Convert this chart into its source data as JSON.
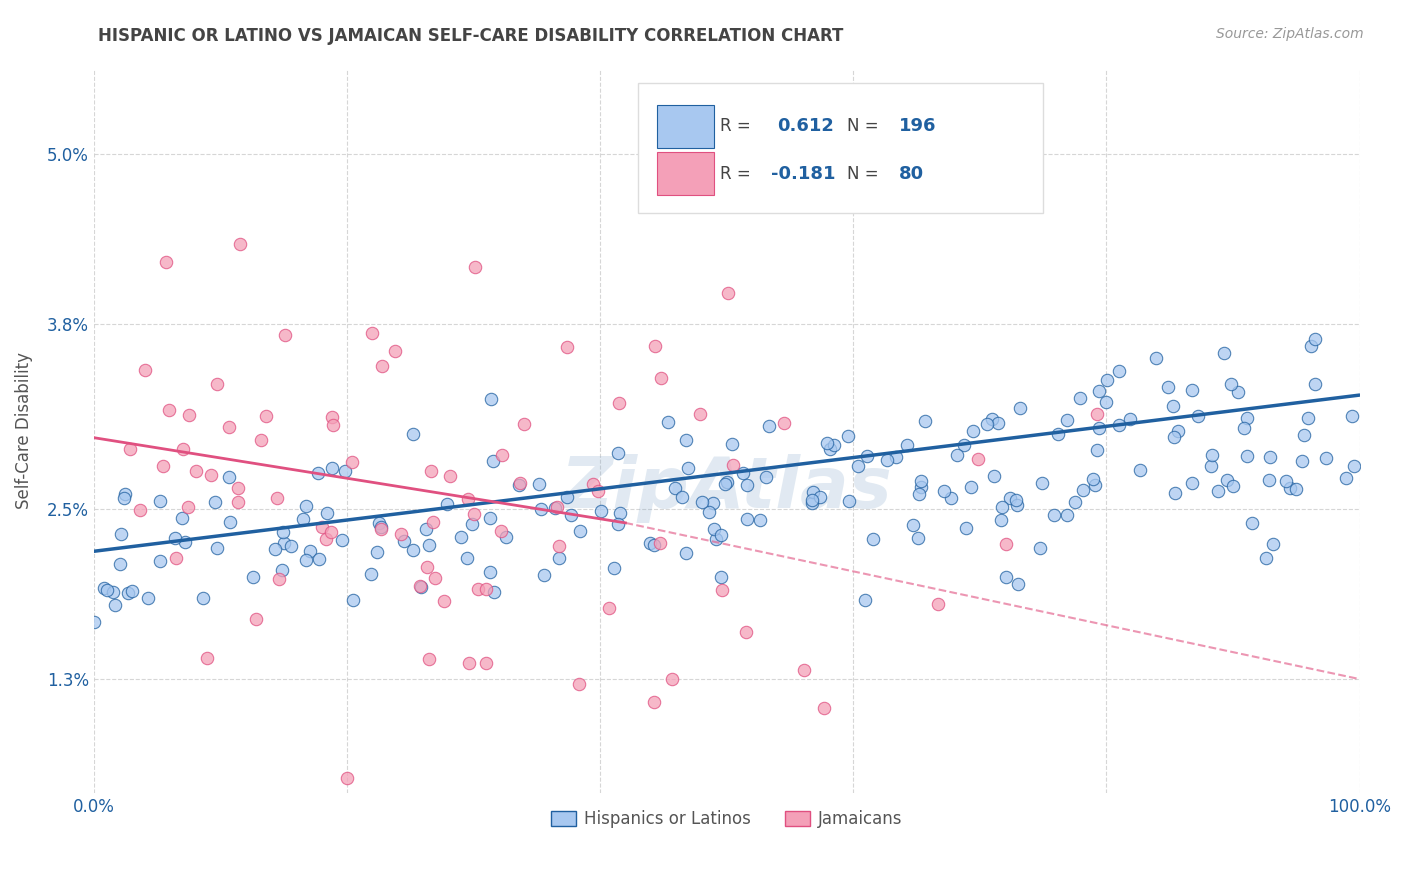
{
  "title": "HISPANIC OR LATINO VS JAMAICAN SELF-CARE DISABILITY CORRELATION CHART",
  "source": "Source: ZipAtlas.com",
  "ylabel": "Self-Care Disability",
  "yticks": [
    "1.3%",
    "2.5%",
    "3.8%",
    "5.0%"
  ],
  "ytick_values": [
    0.013,
    0.025,
    0.038,
    0.05
  ],
  "xlim": [
    0.0,
    1.0
  ],
  "ylim": [
    0.005,
    0.056
  ],
  "r_blue": 0.612,
  "n_blue": 196,
  "r_pink": -0.181,
  "n_pink": 80,
  "blue_color": "#A8C8F0",
  "pink_color": "#F4A0B8",
  "trend_blue": "#2060A0",
  "trend_pink": "#E05080",
  "legend_label_blue": "Hispanics or Latinos",
  "legend_label_pink": "Jamaicans",
  "title_color": "#444444",
  "source_color": "#999999",
  "axis_label_color": "#2060A0",
  "stat_color": "#2060A0",
  "background_color": "#FFFFFF",
  "grid_color": "#CCCCCC"
}
